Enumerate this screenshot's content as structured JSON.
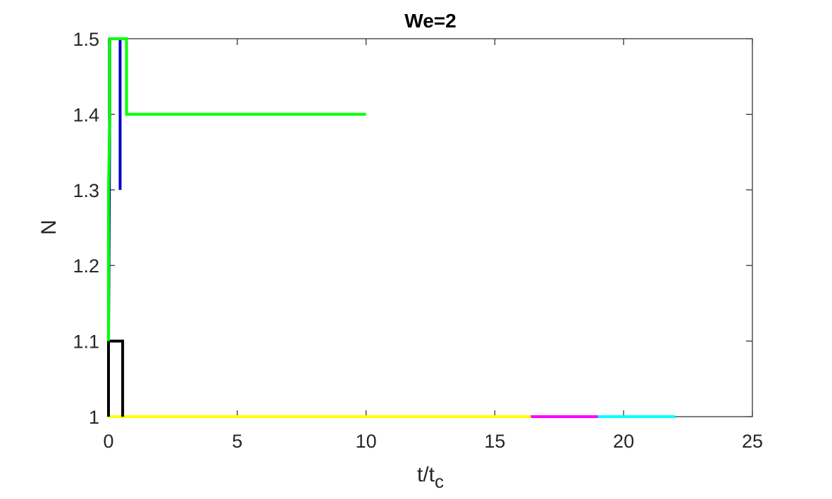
{
  "chart_data": {
    "type": "line",
    "title": "We=2",
    "xlabel_main": "t/t",
    "xlabel_sub": "c",
    "ylabel": "N",
    "xlim": [
      0,
      25
    ],
    "ylim": [
      1,
      1.5
    ],
    "xticks": [
      0,
      5,
      10,
      15,
      20,
      25
    ],
    "xtick_labels": [
      "0",
      "5",
      "10",
      "15",
      "20",
      "25"
    ],
    "yticks": [
      1,
      1.1,
      1.2,
      1.3,
      1.4,
      1.5
    ],
    "ytick_labels": [
      "1",
      "1.1",
      "1.2",
      "1.3",
      "1.4",
      "1.5"
    ],
    "grid": false,
    "box": true,
    "series": [
      {
        "color": "#00ffff",
        "x": [
          0,
          22
        ],
        "y": [
          1,
          1
        ]
      },
      {
        "color": "#ff00ff",
        "x": [
          0,
          19
        ],
        "y": [
          1,
          1
        ]
      },
      {
        "color": "#ffff00",
        "x": [
          0,
          16.4
        ],
        "y": [
          1,
          1
        ]
      },
      {
        "color": "#ffff00",
        "x": [
          0,
          6.7
        ],
        "y": [
          1,
          1
        ]
      },
      {
        "color": "#000000",
        "x": [
          0,
          0,
          0.55,
          0.55,
          0.55
        ],
        "y": [
          1,
          1.1,
          1.1,
          1,
          1
        ]
      },
      {
        "color": "#0000cc",
        "x": [
          0,
          0.05,
          0.05,
          0.45,
          0.45,
          0.45
        ],
        "y": [
          1.1,
          1.4,
          1.5,
          1.5,
          1.3,
          1.3
        ]
      },
      {
        "color": "#00ff00",
        "x": [
          0,
          0,
          0.05,
          0.05,
          0.25,
          0.25,
          0.7,
          0.7,
          10
        ],
        "y": [
          1.1,
          1.3,
          1.4,
          1.5,
          1.5,
          1.5,
          1.5,
          1.4,
          1.4
        ]
      }
    ]
  }
}
